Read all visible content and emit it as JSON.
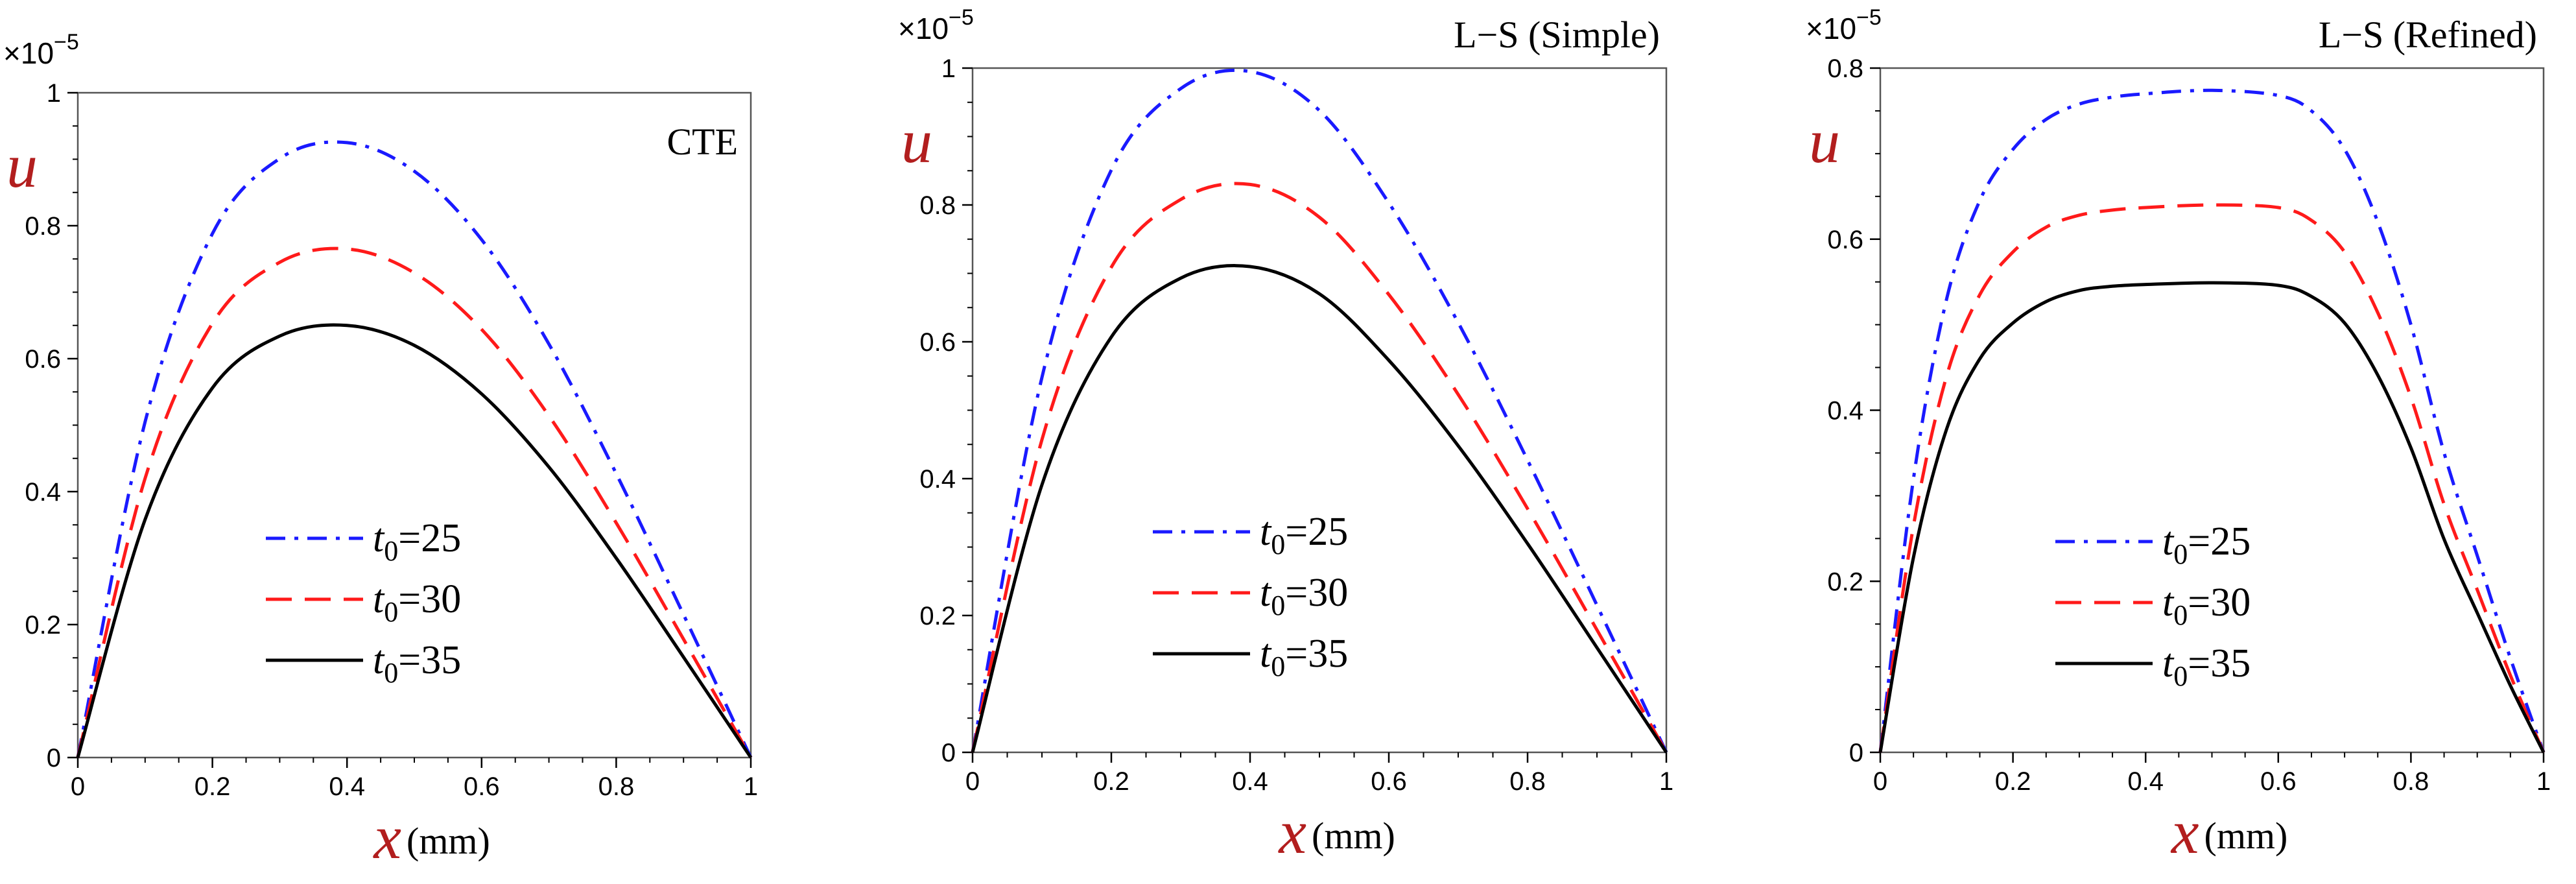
{
  "chart_data": [
    {
      "type": "line",
      "title": "CTE",
      "scale_factor": "×10",
      "scale_exponent": "−5",
      "xlabel_var": "x",
      "xlabel_unit": "(mm)",
      "ylabel": "u",
      "xlim": [
        0,
        1
      ],
      "ylim": [
        0,
        1
      ],
      "xticks": [
        0,
        0.2,
        0.4,
        0.6,
        0.8,
        1
      ],
      "xtick_labels": [
        "0",
        "0.2",
        "0.4",
        "0.6",
        "0.8",
        "1"
      ],
      "yticks": [
        0,
        0.2,
        0.4,
        0.6,
        0.8,
        1
      ],
      "ytick_labels": [
        "0",
        "0.2",
        "0.4",
        "0.6",
        "0.8",
        "1"
      ],
      "legend_position": "lower-center",
      "x": [
        0,
        0.1,
        0.2,
        0.3,
        0.4,
        0.5,
        0.6,
        0.7,
        0.8,
        0.9,
        1
      ],
      "series": [
        {
          "name": "t₀=25",
          "label_var": "t",
          "label_sub": "0",
          "label_val": "=25",
          "style": "dashdot",
          "color": "#1a1aff",
          "values": [
            0,
            0.505,
            0.788,
            0.901,
            0.925,
            0.882,
            0.779,
            0.622,
            0.427,
            0.215,
            0
          ]
        },
        {
          "name": "t₀=30",
          "label_var": "t",
          "label_sub": "0",
          "label_val": "=30",
          "style": "dashed",
          "color": "#ff1a1a",
          "values": [
            0,
            0.42,
            0.653,
            0.745,
            0.765,
            0.729,
            0.644,
            0.514,
            0.353,
            0.178,
            0
          ]
        },
        {
          "name": "t₀=35",
          "label_var": "t",
          "label_sub": "0",
          "label_val": "=35",
          "style": "solid",
          "color": "#000000",
          "values": [
            0,
            0.358,
            0.556,
            0.634,
            0.65,
            0.62,
            0.547,
            0.437,
            0.3,
            0.151,
            0
          ]
        }
      ]
    },
    {
      "type": "line",
      "title": "L−S (Simple)",
      "scale_factor": "×10",
      "scale_exponent": "−5",
      "xlabel_var": "x",
      "xlabel_unit": "(mm)",
      "ylabel": "u",
      "xlim": [
        0,
        1
      ],
      "ylim": [
        0,
        1
      ],
      "xticks": [
        0,
        0.2,
        0.4,
        0.6,
        0.8,
        1
      ],
      "xtick_labels": [
        "0",
        "0.2",
        "0.4",
        "0.6",
        "0.8",
        "1"
      ],
      "yticks": [
        0,
        0.2,
        0.4,
        0.6,
        0.8,
        1
      ],
      "ytick_labels": [
        "0",
        "0.2",
        "0.4",
        "0.6",
        "0.8",
        "1"
      ],
      "legend_position": "lower-center",
      "x": [
        0,
        0.1,
        0.2,
        0.3,
        0.4,
        0.5,
        0.6,
        0.7,
        0.8,
        0.9,
        1
      ],
      "series": [
        {
          "name": "t₀=25",
          "label_var": "t",
          "label_sub": "0",
          "label_val": "=25",
          "style": "dashdot",
          "color": "#1a1aff",
          "values": [
            0,
            0.548,
            0.851,
            0.97,
            0.995,
            0.938,
            0.803,
            0.628,
            0.427,
            0.215,
            0
          ]
        },
        {
          "name": "t₀=30",
          "label_var": "t",
          "label_sub": "0",
          "label_val": "=30",
          "style": "dashed",
          "color": "#ff1a1a",
          "values": [
            0,
            0.457,
            0.709,
            0.808,
            0.83,
            0.782,
            0.669,
            0.523,
            0.356,
            0.179,
            0
          ]
        },
        {
          "name": "t₀=35",
          "label_var": "t",
          "label_sub": "0",
          "label_val": "=35",
          "style": "solid",
          "color": "#000000",
          "values": [
            0,
            0.391,
            0.607,
            0.693,
            0.71,
            0.67,
            0.573,
            0.448,
            0.305,
            0.153,
            0
          ]
        }
      ]
    },
    {
      "type": "line",
      "title": "L−S (Refined)",
      "scale_factor": "×10",
      "scale_exponent": "−5",
      "xlabel_var": "x",
      "xlabel_unit": "(mm)",
      "ylabel": "u",
      "xlim": [
        0,
        1
      ],
      "ylim": [
        0,
        0.8
      ],
      "xticks": [
        0,
        0.2,
        0.4,
        0.6,
        0.8,
        1
      ],
      "xtick_labels": [
        "0",
        "0.2",
        "0.4",
        "0.6",
        "0.8",
        "1"
      ],
      "yticks": [
        0,
        0.2,
        0.4,
        0.6,
        0.8
      ],
      "ytick_labels": [
        "0",
        "0.2",
        "0.4",
        "0.6",
        "0.8"
      ],
      "legend_position": "lower-center",
      "x": [
        0,
        0.05,
        0.1,
        0.15,
        0.2,
        0.25,
        0.3,
        0.35,
        0.4,
        0.5,
        0.6,
        0.65,
        0.7,
        0.75,
        0.8,
        0.85,
        0.9,
        0.95,
        1
      ],
      "series": [
        {
          "name": "t₀=25",
          "label_var": "t",
          "label_sub": "0",
          "label_val": "=25",
          "style": "dashdot",
          "color": "#1a1aff",
          "values": [
            0,
            0.32,
            0.53,
            0.645,
            0.705,
            0.74,
            0.758,
            0.766,
            0.77,
            0.774,
            0.768,
            0.75,
            0.705,
            0.62,
            0.5,
            0.35,
            0.23,
            0.11,
            0
          ]
        },
        {
          "name": "t₀=30",
          "label_var": "t",
          "label_sub": "0",
          "label_val": "=30",
          "style": "dashed",
          "color": "#ff1a1a",
          "values": [
            0,
            0.265,
            0.44,
            0.535,
            0.585,
            0.614,
            0.628,
            0.634,
            0.637,
            0.64,
            0.637,
            0.622,
            0.585,
            0.514,
            0.415,
            0.29,
            0.19,
            0.09,
            0
          ]
        },
        {
          "name": "t₀=35",
          "label_var": "t",
          "label_sub": "0",
          "label_val": "=35",
          "style": "solid",
          "color": "#000000",
          "values": [
            0,
            0.228,
            0.378,
            0.46,
            0.502,
            0.527,
            0.54,
            0.545,
            0.547,
            0.549,
            0.546,
            0.533,
            0.502,
            0.441,
            0.356,
            0.249,
            0.163,
            0.078,
            0
          ]
        }
      ]
    }
  ]
}
